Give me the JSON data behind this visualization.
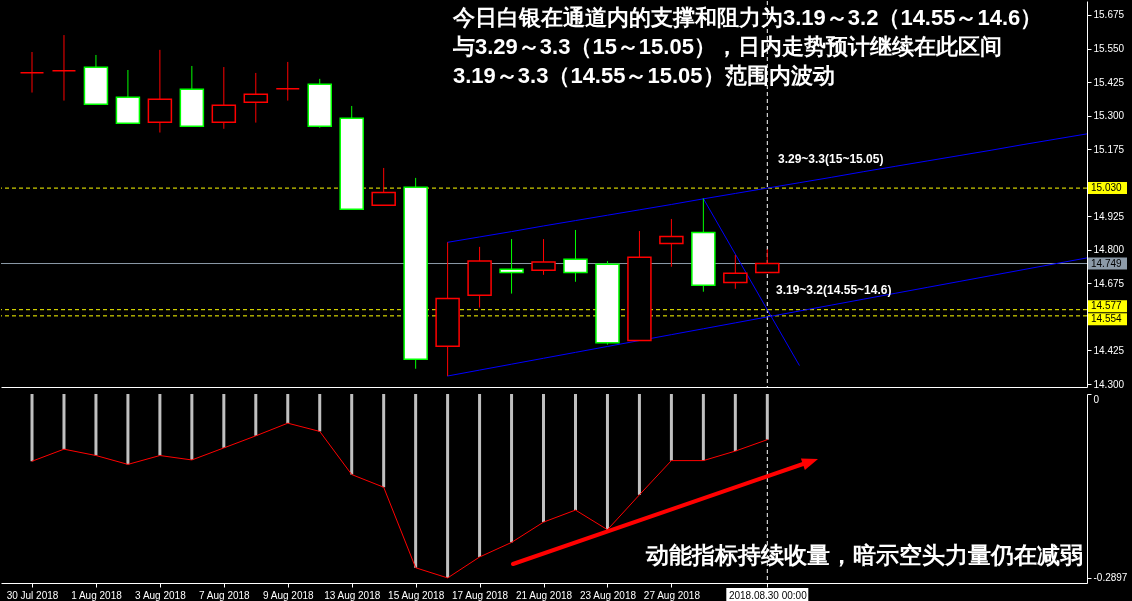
{
  "chart_data": [
    {
      "type": "candlestick",
      "title": "今日白银在通道内的支撑和阻力为3.19～3.2（14.55～14.6）与3.29～3.3（15～15.05），日内走势预计继续在此区间3.19～3.3（14.55～15.05）范围内波动",
      "categories": [
        "30 Jul 2018",
        null,
        "1 Aug 2018",
        null,
        "3 Aug 2018",
        null,
        "7 Aug 2018",
        null,
        "9 Aug 2018",
        null,
        "13 Aug 2018",
        null,
        "15 Aug 2018",
        null,
        "17 Aug 2018",
        null,
        "21 Aug 2018",
        null,
        "23 Aug 2018",
        null,
        "27 Aug 2018",
        null,
        null,
        "2018.08.30 00:00",
        null,
        null,
        null,
        null,
        null,
        null,
        null,
        null,
        null,
        null
      ],
      "ohlc": [
        [
          15.46,
          15.537,
          15.386,
          15.46
        ],
        [
          15.467,
          15.6,
          15.356,
          15.467
        ],
        [
          15.48,
          15.526,
          15.342,
          15.342
        ],
        [
          15.368,
          15.47,
          15.272,
          15.272
        ],
        [
          15.275,
          15.545,
          15.237,
          15.361
        ],
        [
          15.398,
          15.485,
          15.26,
          15.26
        ],
        [
          15.275,
          15.481,
          15.251,
          15.339
        ],
        [
          15.35,
          15.459,
          15.274,
          15.38
        ],
        [
          15.4,
          15.5,
          15.356,
          15.4
        ],
        [
          15.417,
          15.437,
          15.255,
          15.26
        ],
        [
          15.29,
          15.336,
          14.951,
          14.951
        ],
        [
          14.966,
          15.105,
          14.966,
          15.014
        ],
        [
          15.033,
          15.068,
          14.357,
          14.392
        ],
        [
          14.441,
          14.828,
          14.33,
          14.619
        ],
        [
          14.631,
          14.811,
          14.585,
          14.758
        ],
        [
          14.728,
          14.84,
          14.637,
          14.716
        ],
        [
          14.724,
          14.84,
          14.707,
          14.755
        ],
        [
          14.765,
          14.874,
          14.681,
          14.716
        ],
        [
          14.746,
          14.758,
          14.447,
          14.454
        ],
        [
          14.462,
          14.87,
          14.462,
          14.772
        ],
        [
          14.824,
          14.915,
          14.737,
          14.85
        ],
        [
          14.865,
          14.991,
          14.644,
          14.668
        ],
        [
          14.678,
          14.781,
          14.655,
          14.713
        ],
        [
          14.716,
          14.802,
          14.716,
          14.749
        ],
        null,
        null,
        null,
        null,
        null,
        null,
        null,
        null,
        null,
        null
      ],
      "colors": [
        "#ff0000",
        "#ff0000",
        "#00ff00",
        "#00ff00",
        "#ff0000",
        "#00ff00",
        "#ff0000",
        "#ff0000",
        "#ff0000",
        "#00ff00",
        "#00ff00",
        "#ff0000",
        "#00ff00",
        "#ff0000",
        "#ff0000",
        "#00ff00",
        "#ff0000",
        "#00ff00",
        "#00ff00",
        "#ff0000",
        "#ff0000",
        "#00ff00",
        "#ff0000",
        "#ff0000",
        null,
        null,
        null,
        null,
        null,
        null,
        null,
        null,
        null,
        null
      ],
      "series": [
        {
          "type": "line",
          "color": "#0000ff",
          "values": [
            null,
            null,
            null,
            null,
            null,
            null,
            null,
            null,
            null,
            null,
            null,
            null,
            null,
            14.828,
            14.848,
            14.868,
            14.889,
            14.909,
            14.929,
            14.949,
            14.969,
            14.99,
            15.01,
            15.03,
            15.05,
            15.07,
            15.091,
            15.111,
            15.131,
            15.151,
            15.171,
            15.192,
            15.212,
            15.232
          ]
        },
        {
          "type": "line",
          "color": "#0000ff",
          "values": [
            null,
            null,
            null,
            null,
            null,
            null,
            null,
            null,
            null,
            null,
            null,
            null,
            null,
            14.33,
            14.352,
            14.374,
            14.396,
            14.418,
            14.44,
            14.462,
            14.484,
            14.506,
            14.528,
            14.55,
            14.572,
            14.594,
            14.616,
            14.638,
            14.66,
            14.682,
            14.704,
            14.726,
            14.748,
            14.77
          ]
        },
        {
          "type": "line",
          "color": "#0000ff",
          "values": [
            null,
            null,
            null,
            null,
            null,
            null,
            null,
            null,
            null,
            null,
            null,
            null,
            null,
            null,
            null,
            null,
            null,
            null,
            null,
            null,
            null,
            14.991,
            14.784,
            14.577,
            14.37,
            null,
            null,
            null,
            null,
            null,
            null,
            null,
            null,
            null
          ]
        }
      ],
      "ylim": [
        14.289,
        15.727
      ],
      "yticks": [
        {
          "value": 14.3,
          "label": "14.300"
        },
        14.425,
        14.675,
        {
          "value": 14.8,
          "label": "14.800"
        },
        14.925,
        15.175,
        {
          "value": 15.3,
          "label": "15.300"
        },
        15.425,
        {
          "value": 15.55,
          "label": "15.550"
        },
        15.675
      ],
      "ref_lines": [
        {
          "axis": "y",
          "value": 15.03,
          "label": "15.030",
          "color": "#ffff00",
          "line_style": "dashed"
        },
        {
          "axis": "y",
          "value": 14.749,
          "label": "14.749",
          "color": "#8c9aa8",
          "line_style": "solid"
        },
        {
          "axis": "y",
          "value": 14.577,
          "label": "14.577",
          "color": "#ffff00",
          "line_style": "dashed"
        },
        {
          "axis": "y",
          "value": 14.554,
          "label": "14.554",
          "color": "#ffff00",
          "line_style": "dashed"
        },
        {
          "axis": "x",
          "value": "2018.08.30 00:00",
          "color": "#ffffff",
          "line_style": "dashed"
        }
      ],
      "annotations": [
        "3.29~3.3(15~15.05)",
        "3.19~3.2(14.55~14.6)"
      ],
      "tick_labels": "y"
    },
    {
      "type": "bar",
      "categories": [
        "30 Jul 2018",
        null,
        "1 Aug 2018",
        null,
        "3 Aug 2018",
        null,
        "7 Aug 2018",
        null,
        "9 Aug 2018",
        null,
        "13 Aug 2018",
        null,
        "15 Aug 2018",
        null,
        "17 Aug 2018",
        null,
        "21 Aug 2018",
        null,
        "23 Aug 2018",
        null,
        "27 Aug 2018",
        null,
        null,
        "2018.08.30 00:00",
        null,
        null,
        null,
        null,
        null,
        null,
        null,
        null,
        null,
        null
      ],
      "series": [
        {
          "type": "bar",
          "color": "#c0c0c0",
          "values": [
            -0.106,
            -0.087,
            -0.097,
            -0.111,
            -0.097,
            -0.104,
            -0.085,
            -0.066,
            -0.046,
            -0.059,
            -0.127,
            -0.147,
            -0.274,
            -0.29,
            -0.257,
            -0.234,
            -0.202,
            -0.183,
            -0.214,
            -0.159,
            -0.105,
            -0.105,
            -0.09,
            -0.072,
            null,
            null,
            null,
            null,
            null,
            null,
            null,
            null,
            null,
            null
          ]
        },
        {
          "type": "line",
          "color": "#ff0000",
          "values": [
            -0.106,
            -0.087,
            -0.097,
            -0.111,
            -0.097,
            -0.104,
            -0.085,
            -0.066,
            -0.046,
            -0.059,
            -0.127,
            -0.147,
            -0.274,
            -0.29,
            -0.257,
            -0.234,
            -0.202,
            -0.183,
            -0.214,
            -0.159,
            -0.105,
            -0.105,
            -0.09,
            -0.072,
            null,
            null,
            null,
            null,
            null,
            null,
            null,
            null,
            null,
            null
          ]
        }
      ],
      "ylim": [
        -0.298,
        0
      ],
      "yticks": [
        -0.2897,
        0
      ],
      "ref_lines": [
        {
          "axis": "x",
          "value": "2018.08.30 00:00",
          "color": "#ffffff",
          "line_style": "dashed"
        }
      ],
      "annotations": [
        "动能指标持续收量，暗示空头力量仍在减弱"
      ]
    }
  ]
}
